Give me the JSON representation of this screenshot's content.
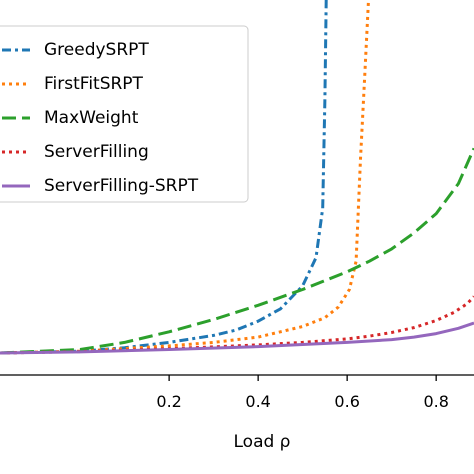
{
  "chart_data": {
    "type": "line",
    "xlabel": "Load ρ",
    "ylabel": "",
    "title": "",
    "xlim": [
      -0.18,
      0.885
    ],
    "ylim": [
      0,
      100
    ],
    "x_ticks": [
      "0.2",
      "0.4",
      "0.6",
      "0.8"
    ],
    "x_tick_values": [
      0.2,
      0.4,
      0.6,
      0.8
    ],
    "grid": false,
    "legend_position": "top-left",
    "series": [
      {
        "name": "GreedySRPT",
        "color": "#1f77b4",
        "style": "dashdot",
        "x": [
          -0.18,
          0.0,
          0.1,
          0.2,
          0.3,
          0.35,
          0.4,
          0.45,
          0.5,
          0.53,
          0.545,
          0.55,
          0.553
        ],
        "y": [
          0,
          0.5,
          1.5,
          3,
          5,
          6.5,
          9,
          12.5,
          19,
          27,
          41,
          72,
          100
        ]
      },
      {
        "name": "FirstFitSRPT",
        "color": "#ff7f0e",
        "style": "dotted",
        "x": [
          -0.18,
          0.0,
          0.2,
          0.3,
          0.4,
          0.45,
          0.5,
          0.55,
          0.58,
          0.605,
          0.62,
          0.63,
          0.64,
          0.648
        ],
        "y": [
          0,
          0.5,
          2,
          3,
          4.5,
          6,
          7.5,
          10,
          13,
          18,
          26,
          55,
          80,
          100
        ]
      },
      {
        "name": "MaxWeight",
        "color": "#2ca02c",
        "style": "dashed",
        "x": [
          -0.18,
          0.0,
          0.1,
          0.2,
          0.3,
          0.4,
          0.5,
          0.55,
          0.6,
          0.65,
          0.7,
          0.75,
          0.8,
          0.85,
          0.885
        ],
        "y": [
          0,
          1,
          3,
          6,
          9.5,
          13.5,
          18,
          20.5,
          23,
          26,
          29.5,
          34,
          39.5,
          48,
          58
        ]
      },
      {
        "name": "ServerFilling",
        "color": "#d62728",
        "style": "dotted",
        "x": [
          -0.18,
          0.0,
          0.2,
          0.4,
          0.5,
          0.6,
          0.65,
          0.7,
          0.75,
          0.8,
          0.84,
          0.87,
          0.885
        ],
        "y": [
          0,
          0.4,
          1.2,
          2.3,
          3,
          4,
          4.8,
          5.8,
          7.2,
          9.2,
          11.5,
          14,
          16
        ]
      },
      {
        "name": "ServerFilling-SRPT",
        "color": "#9467bd",
        "style": "solid",
        "x": [
          -0.18,
          0.0,
          0.2,
          0.4,
          0.5,
          0.6,
          0.7,
          0.75,
          0.8,
          0.85,
          0.885
        ],
        "y": [
          0,
          0.3,
          1,
          1.8,
          2.4,
          3,
          3.8,
          4.5,
          5.5,
          7,
          8.5
        ]
      }
    ]
  }
}
